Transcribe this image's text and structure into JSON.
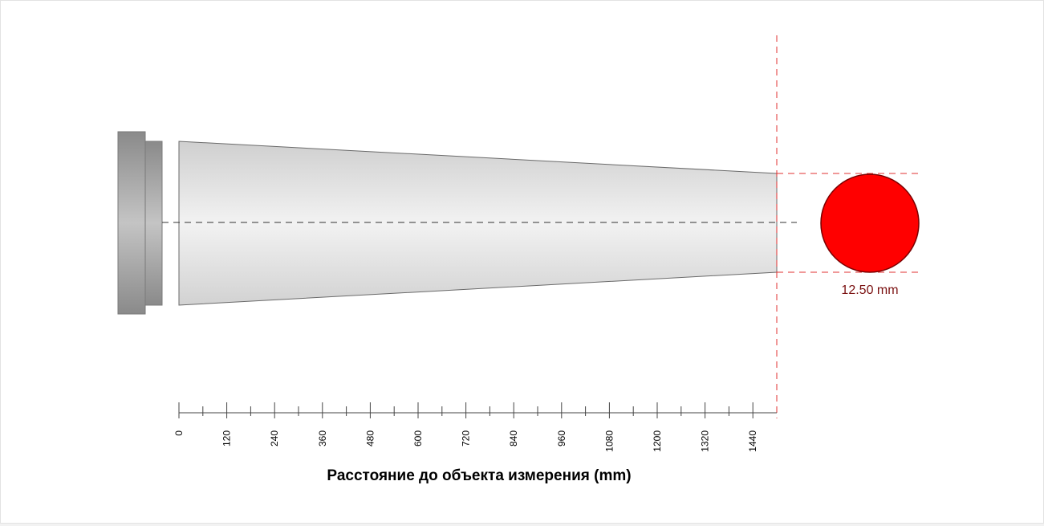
{
  "diagram": {
    "axis": {
      "title": "Расстояние до объекта измерения (mm)",
      "min": 0,
      "max": 1500,
      "major_step": 120,
      "minor_step": 60,
      "tick_labels": [
        "0",
        "120",
        "240",
        "360",
        "480",
        "600",
        "720",
        "840",
        "960",
        "1080",
        "1200",
        "1320",
        "1440"
      ]
    },
    "measurement": {
      "distance_mm": 1500,
      "spot_diameter_label": "12.50 mm"
    },
    "colors": {
      "spot": "#ff0000",
      "spot_outline": "#7a0000",
      "guide_lines": "#e03030",
      "beam_fill": "#e6e6e6",
      "sensor_body": "#8f8f8f"
    }
  }
}
